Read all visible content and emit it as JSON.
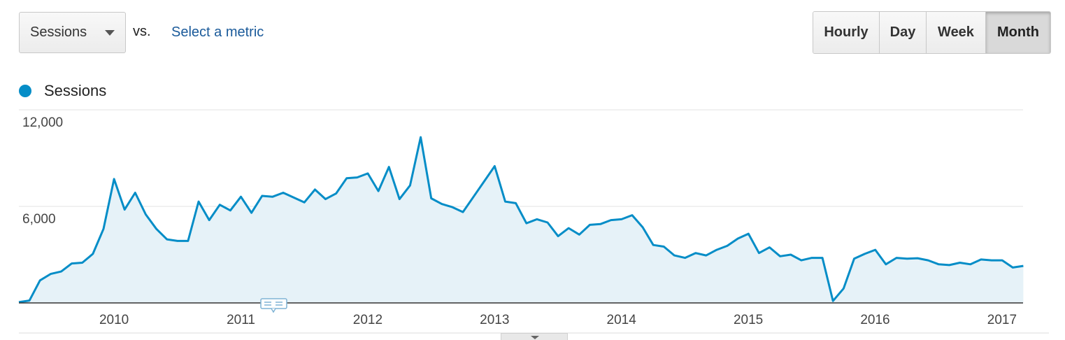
{
  "controls": {
    "primary_metric": "Sessions",
    "vs_label": "vs.",
    "secondary_metric_link": "Select a metric",
    "time_buttons": [
      {
        "label": "Hourly",
        "active": false
      },
      {
        "label": "Day",
        "active": false
      },
      {
        "label": "Week",
        "active": false
      },
      {
        "label": "Month",
        "active": true
      }
    ]
  },
  "icons": {
    "metric_dropdown": "chevron-down-icon",
    "annotation_marker": "annotation-icon",
    "expand_toggle": "chevron-down-icon"
  },
  "colors": {
    "series_line": "#058dc7",
    "series_fill": "#e6f2f8",
    "link": "#1a5a9a"
  },
  "chart_data": {
    "type": "area",
    "title": "",
    "xlabel": "",
    "ylabel": "",
    "ylim": [
      0,
      12000
    ],
    "y_ticks": [
      0,
      6000,
      12000
    ],
    "y_tick_labels": [
      "",
      "6,000",
      "12,000"
    ],
    "x_start": "2009-05",
    "x_tick_labels": [
      "2010",
      "2011",
      "2012",
      "2013",
      "2014",
      "2015",
      "2016",
      "2017"
    ],
    "grid": true,
    "legend_position": "top-left",
    "series": [
      {
        "name": "Sessions",
        "values": [
          50,
          150,
          1400,
          1800,
          1950,
          2450,
          2500,
          3050,
          4600,
          7700,
          5800,
          6850,
          5500,
          4600,
          3950,
          3850,
          3850,
          6300,
          5150,
          6100,
          5750,
          6600,
          5600,
          6650,
          6600,
          6850,
          6550,
          6250,
          7050,
          6450,
          6800,
          7750,
          7800,
          8050,
          6950,
          8450,
          6450,
          7300,
          10300,
          6500,
          6150,
          5950,
          5650,
          6600,
          7550,
          8500,
          6300,
          6200,
          4950,
          5200,
          5000,
          4150,
          4650,
          4250,
          4850,
          4900,
          5150,
          5200,
          5450,
          4700,
          3600,
          3500,
          2950,
          2800,
          3100,
          2950,
          3300,
          3550,
          4000,
          4300,
          3100,
          3450,
          2900,
          3000,
          2650,
          2800,
          2800,
          120,
          900,
          2750,
          3050,
          3300,
          2400,
          2800,
          2750,
          2780,
          2650,
          2400,
          2350,
          2500,
          2400,
          2700,
          2650,
          2650,
          2200,
          2300
        ]
      }
    ]
  }
}
